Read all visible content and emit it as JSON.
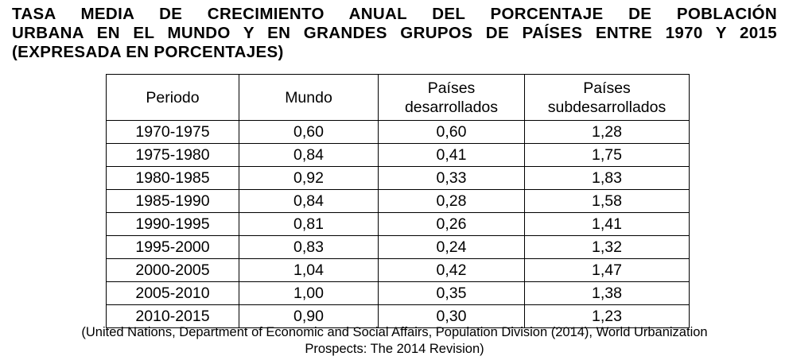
{
  "title": {
    "line1": "TASA MEDIA DE CRECIMIENTO ANUAL DEL PORCENTAJE DE POBLACIÓN",
    "line2": "URBANA EN EL MUNDO Y EN GRANDES GRUPOS DE PAÍSES ENTRE 1970 Y 2015",
    "line3": "(EXPRESADA EN PORCENTAJES)"
  },
  "table": {
    "headers": {
      "periodo": "Periodo",
      "mundo": "Mundo",
      "desarrollados_1": "Países",
      "desarrollados_2": "desarrollados",
      "subdesarrollados_1": "Países",
      "subdesarrollados_2": "subdesarrollados"
    },
    "rows": [
      [
        "1970-1975",
        "0,60",
        "0,60",
        "1,28"
      ],
      [
        "1975-1980",
        "0,84",
        "0,41",
        "1,75"
      ],
      [
        "1980-1985",
        "0,92",
        "0,33",
        "1,83"
      ],
      [
        "1985-1990",
        "0,84",
        "0,28",
        "1,58"
      ],
      [
        "1990-1995",
        "0,81",
        "0,26",
        "1,41"
      ],
      [
        "1995-2000",
        "0,83",
        "0,24",
        "1,32"
      ],
      [
        "2000-2005",
        "1,04",
        "0,42",
        "1,47"
      ],
      [
        "2005-2010",
        "1,00",
        "0,35",
        "1,38"
      ],
      [
        "2010-2015",
        "0,90",
        "0,30",
        "1,23"
      ]
    ]
  },
  "source": {
    "line1": "(United Nations, Department of Economic and Social Affairs, Population Division (2014), World Urbanization",
    "line2": "Prospects: The 2014 Revision)"
  }
}
